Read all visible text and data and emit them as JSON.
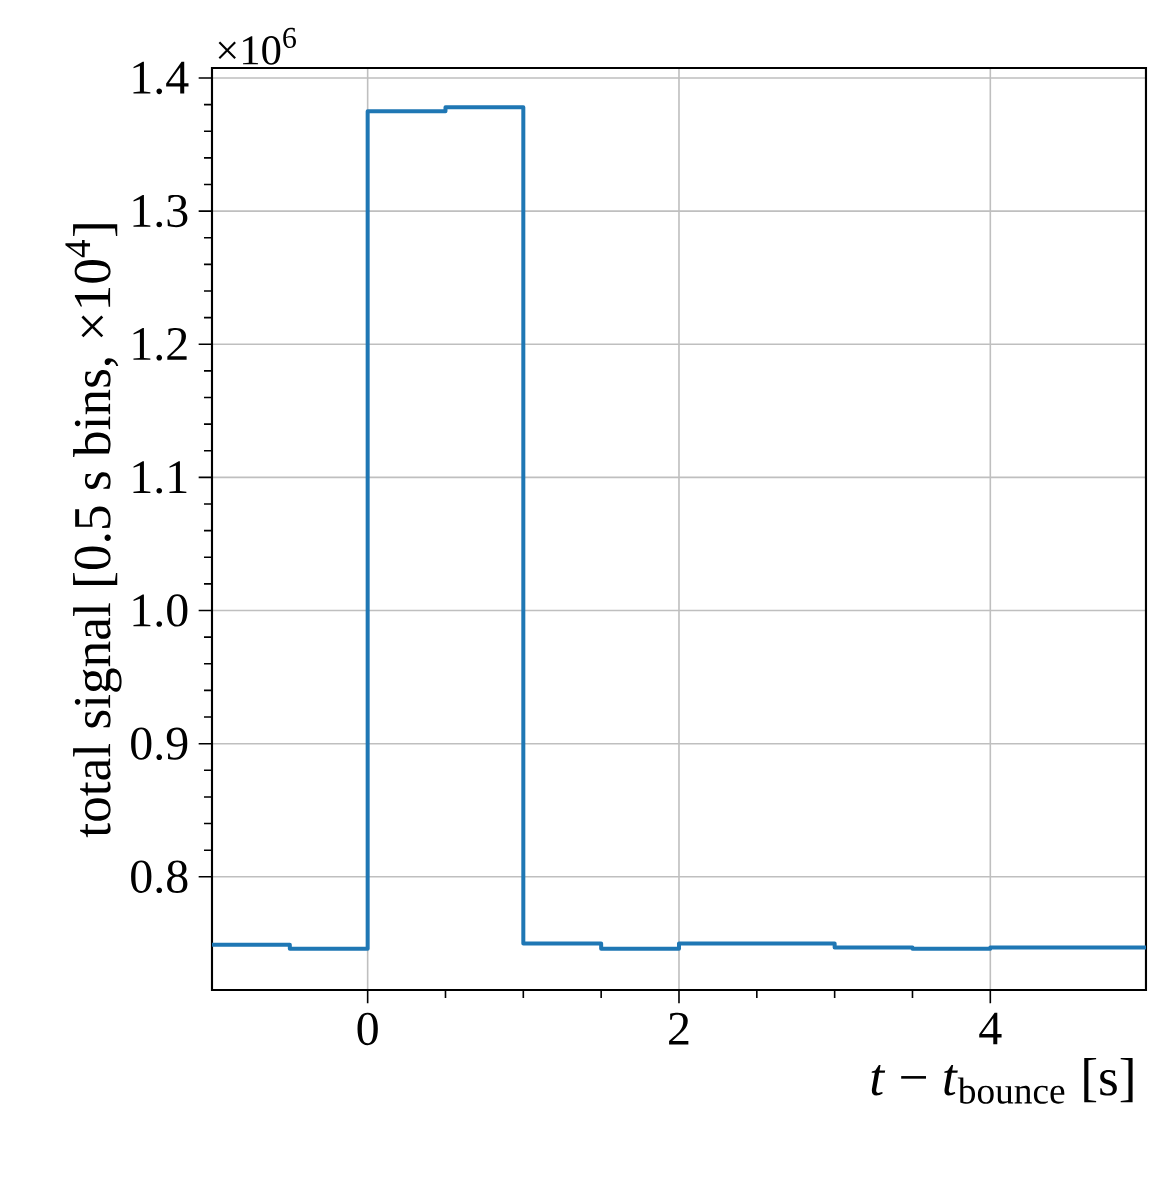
{
  "chart_data": {
    "type": "histogram",
    "xlabel": "*t* − *t*$_{bounce}$ [s]",
    "ylabel": "total signal [0.5 s bins, ×10$^{4}$]",
    "annotations": [
      "×10$^{6}$"
    ],
    "bins": [
      -1,
      -0.5,
      0,
      0.5,
      1,
      1.5,
      2,
      2.5,
      3,
      3.5,
      4,
      4.5,
      5
    ],
    "values": [
      0.749,
      0.746,
      1.375,
      1.378,
      0.75,
      0.746,
      0.75,
      0.75,
      0.747,
      0.746,
      0.747,
      0.747
    ],
    "color": "#1f77b4",
    "xlim": [
      -1,
      5
    ],
    "ylim": [
      0.715,
      1.4075
    ],
    "xticks": [
      0,
      2,
      4
    ],
    "yticks": [
      {
        "value": 0.8,
        "label": "0.8"
      },
      {
        "value": 0.9,
        "label": "0.9"
      },
      {
        "value": 1.0,
        "label": "1.0"
      },
      {
        "value": 1.1,
        "label": "1.1"
      },
      {
        "value": 1.2,
        "label": "1.2"
      },
      {
        "value": 1.3,
        "label": "1.3"
      },
      {
        "value": 1.4,
        "label": "1.4"
      }
    ],
    "grid": true
  }
}
